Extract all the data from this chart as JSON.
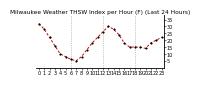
{
  "title": "Milwaukee Weather THSW Index per Hour (F) (Last 24 Hours)",
  "x_values": [
    0,
    1,
    2,
    3,
    4,
    5,
    6,
    7,
    8,
    9,
    10,
    11,
    12,
    13,
    14,
    15,
    16,
    17,
    18,
    19,
    20,
    21,
    22,
    23
  ],
  "y_values": [
    32,
    28,
    22,
    16,
    10,
    8,
    6,
    5,
    8,
    13,
    18,
    22,
    26,
    30,
    28,
    24,
    18,
    15,
    15,
    15,
    14,
    18,
    20,
    22
  ],
  "ylim": [
    0,
    38
  ],
  "xlim": [
    -0.5,
    23.5
  ],
  "line_color": "#cc0000",
  "marker_color": "#000000",
  "bg_color": "#ffffff",
  "plot_bg_color": "#ffffff",
  "grid_color": "#999999",
  "title_color": "#000000",
  "title_fontsize": 4.2,
  "tick_fontsize": 3.5,
  "ytick_labels": [
    "5",
    "10",
    "15",
    "20",
    "25",
    "30",
    "35"
  ],
  "ytick_values": [
    5,
    10,
    15,
    20,
    25,
    30,
    35
  ],
  "xtick_labels": [
    "0",
    "",
    "",
    "1",
    "",
    "",
    "2",
    "",
    "",
    "3",
    "",
    "",
    "4",
    "",
    "",
    "5",
    "",
    "",
    "6",
    "",
    "",
    "7",
    "",
    "",
    "8",
    "",
    "",
    "9",
    "",
    "",
    "10",
    "",
    "",
    "11",
    "",
    "",
    "12",
    "",
    "",
    "13",
    "",
    "",
    "14",
    "",
    "",
    "15",
    "",
    "",
    "16",
    "",
    "",
    "17",
    "",
    "",
    "18",
    "",
    "",
    "19",
    "",
    "",
    "20",
    "",
    "",
    "21",
    "",
    "",
    "22",
    "",
    "",
    "23"
  ]
}
